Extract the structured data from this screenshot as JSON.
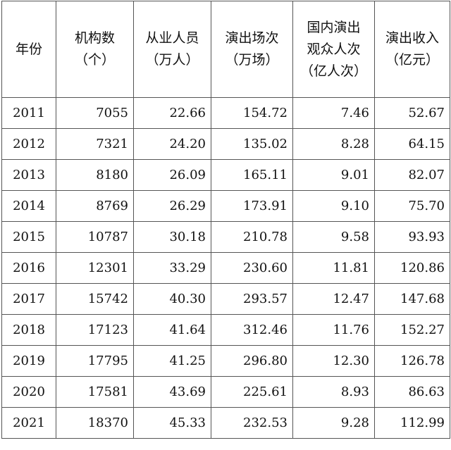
{
  "table": {
    "headers": [
      [
        "年份"
      ],
      [
        "机构数",
        "（个）"
      ],
      [
        "从业人员",
        "（万人）"
      ],
      [
        "演出场次",
        "（万场）"
      ],
      [
        "国内演出",
        "观众人次",
        "（亿人次）"
      ],
      [
        "演出收入",
        "（亿元）"
      ]
    ],
    "rows": [
      [
        "2011",
        "7055",
        "22.66",
        "154.72",
        "7.46",
        "52.67"
      ],
      [
        "2012",
        "7321",
        "24.20",
        "135.02",
        "8.28",
        "64.15"
      ],
      [
        "2013",
        "8180",
        "26.09",
        "165.11",
        "9.01",
        "82.07"
      ],
      [
        "2014",
        "8769",
        "26.29",
        "173.91",
        "9.10",
        "75.70"
      ],
      [
        "2015",
        "10787",
        "30.18",
        "210.78",
        "9.58",
        "93.93"
      ],
      [
        "2016",
        "12301",
        "33.29",
        "230.60",
        "11.81",
        "120.86"
      ],
      [
        "2017",
        "15742",
        "40.30",
        "293.57",
        "12.47",
        "147.68"
      ],
      [
        "2018",
        "17123",
        "41.64",
        "312.46",
        "11.76",
        "152.27"
      ],
      [
        "2019",
        "17795",
        "41.25",
        "296.80",
        "12.30",
        "126.78"
      ],
      [
        "2020",
        "17581",
        "43.69",
        "225.61",
        "8.93",
        "86.63"
      ],
      [
        "2021",
        "18370",
        "45.33",
        "232.53",
        "9.28",
        "112.99"
      ]
    ]
  }
}
